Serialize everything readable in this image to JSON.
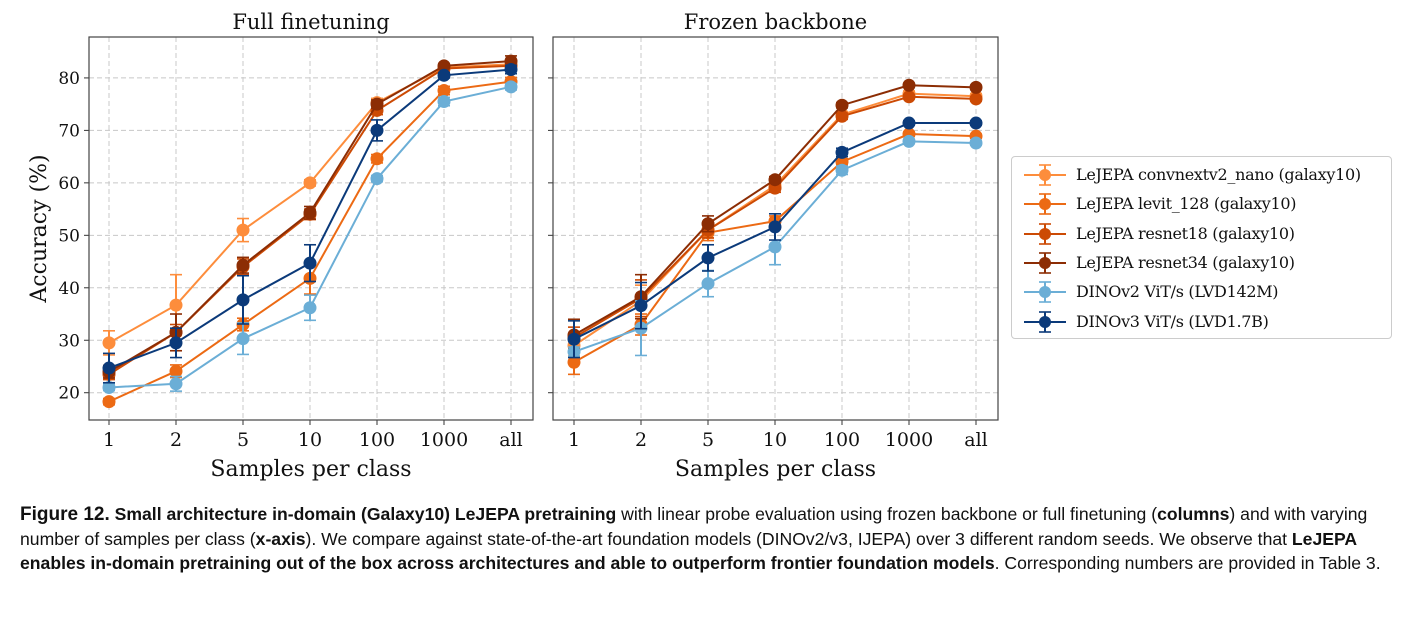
{
  "chart_data": [
    {
      "type": "line",
      "title": "Full finetuning",
      "xlabel": "Samples per class",
      "ylabel": "Accuracy (%)",
      "categories": [
        "1",
        "2",
        "5",
        "10",
        "100",
        "1000",
        "all"
      ],
      "yticks": [
        20,
        30,
        40,
        50,
        60,
        70,
        80
      ],
      "ylim": [
        14.8,
        87.8
      ],
      "grid": true,
      "series": [
        {
          "name": "LeJEPA convnextv2_nano (galaxy10)",
          "color": "#fd8d3c",
          "values": [
            29.5,
            36.7,
            51.0,
            60.0,
            75.3,
            82.0,
            82.6
          ],
          "err": [
            2.3,
            5.8,
            2.2,
            0.6,
            0.8,
            0.5,
            0.6
          ]
        },
        {
          "name": "LeJEPA levit_128 (galaxy10)",
          "color": "#ec6a14",
          "values": [
            18.3,
            24.1,
            33.0,
            41.8,
            64.6,
            77.6,
            79.3
          ],
          "err": [
            0.6,
            1.2,
            1.2,
            3.0,
            0.8,
            0.8,
            0.8
          ]
        },
        {
          "name": "LeJEPA resnet18 (galaxy10)",
          "color": "#cc4a04",
          "values": [
            23.5,
            31.5,
            44.0,
            54.0,
            73.8,
            81.8,
            82.3
          ],
          "err": [
            1.0,
            1.5,
            1.5,
            1.0,
            0.8,
            0.5,
            0.8
          ]
        },
        {
          "name": "LeJEPA resnet34 (galaxy10)",
          "color": "#8c2d04",
          "values": [
            24.0,
            31.5,
            44.3,
            54.3,
            75.0,
            82.3,
            83.2
          ],
          "err": [
            1.2,
            3.5,
            1.5,
            1.2,
            0.8,
            0.4,
            1.0
          ]
        },
        {
          "name": "DINOv2 ViT/s (LVD142M)",
          "color": "#6baed6",
          "values": [
            21.0,
            21.7,
            30.3,
            36.2,
            60.8,
            75.5,
            78.3
          ],
          "err": [
            0.6,
            1.4,
            3.0,
            2.4,
            0.6,
            0.8,
            0.6
          ]
        },
        {
          "name": "DINOv3 ViT/s (LVD1.7B)",
          "color": "#0b3a7a",
          "values": [
            24.7,
            29.5,
            37.7,
            44.7,
            70.0,
            80.5,
            81.6
          ],
          "err": [
            2.8,
            2.8,
            4.6,
            3.5,
            2.0,
            0.5,
            0.8
          ]
        }
      ]
    },
    {
      "type": "line",
      "title": "Frozen backbone",
      "xlabel": "Samples per class",
      "ylabel": "",
      "categories": [
        "1",
        "2",
        "5",
        "10",
        "100",
        "1000",
        "all"
      ],
      "yticks": [
        20,
        30,
        40,
        50,
        60,
        70,
        80
      ],
      "ylim": [
        14.8,
        87.8
      ],
      "grid": true,
      "series": [
        {
          "name": "LeJEPA convnextv2_nano (galaxy10)",
          "color": "#fd8d3c",
          "values": [
            29.0,
            37.5,
            51.0,
            59.5,
            73.0,
            77.0,
            76.5
          ],
          "err": [
            2.0,
            3.0,
            1.5,
            0.8,
            0.6,
            0.5,
            0.5
          ]
        },
        {
          "name": "LeJEPA levit_128 (galaxy10)",
          "color": "#ec6a14",
          "values": [
            25.8,
            33.0,
            50.5,
            52.7,
            64.0,
            69.3,
            68.9
          ],
          "err": [
            2.3,
            2.0,
            1.5,
            1.0,
            0.6,
            0.4,
            0.4
          ]
        },
        {
          "name": "LeJEPA resnet18 (galaxy10)",
          "color": "#cc4a04",
          "values": [
            30.5,
            38.0,
            51.0,
            59.0,
            72.7,
            76.4,
            76.0
          ],
          "err": [
            2.0,
            3.5,
            1.5,
            0.8,
            0.6,
            0.4,
            0.4
          ]
        },
        {
          "name": "LeJEPA resnet34 (galaxy10)",
          "color": "#8c2d04",
          "values": [
            31.0,
            38.3,
            52.2,
            60.6,
            74.8,
            78.6,
            78.2
          ],
          "err": [
            3.0,
            4.2,
            1.5,
            0.6,
            0.5,
            0.4,
            0.4
          ]
        },
        {
          "name": "DINOv2 ViT/s (LVD142M)",
          "color": "#6baed6",
          "values": [
            27.8,
            32.3,
            40.8,
            47.8,
            62.4,
            67.9,
            67.6
          ],
          "err": [
            0.9,
            5.2,
            2.5,
            3.4,
            0.8,
            0.4,
            0.4
          ]
        },
        {
          "name": "DINOv3 ViT/s (LVD1.7B)",
          "color": "#0b3a7a",
          "values": [
            30.2,
            36.6,
            45.7,
            51.6,
            65.8,
            71.4,
            71.4
          ],
          "err": [
            3.5,
            4.4,
            2.5,
            2.5,
            0.8,
            0.4,
            0.4
          ]
        }
      ]
    }
  ],
  "legend": {
    "placement": "right",
    "items": [
      "LeJEPA convnextv2_nano (galaxy10)",
      "LeJEPA levit_128 (galaxy10)",
      "LeJEPA resnet18 (galaxy10)",
      "LeJEPA resnet34 (galaxy10)",
      "DINOv2 ViT/s (LVD142M)",
      "DINOv3 ViT/s (LVD1.7B)"
    ]
  },
  "caption": {
    "figure_label": "Figure 12.",
    "segments": [
      {
        "text": " Small architecture in-domain (Galaxy10) LeJEPA pretraining",
        "bold": true
      },
      {
        "text": " with linear probe evaluation using frozen backbone or full finetuning (",
        "bold": false
      },
      {
        "text": "columns",
        "bold": true
      },
      {
        "text": ") and with varying number of samples per class (",
        "bold": false
      },
      {
        "text": "x-axis",
        "bold": true
      },
      {
        "text": "). We compare against state-of-the-art foundation models (DINOv2/v3, IJEPA) over 3 different random seeds. We observe that ",
        "bold": false
      },
      {
        "text": "LeJEPA enables in-domain pretraining out of the box across architectures and able to outperform frontier foundation models",
        "bold": true
      },
      {
        "text": ". Corresponding numbers are provided in Table 3.",
        "bold": false
      }
    ]
  }
}
